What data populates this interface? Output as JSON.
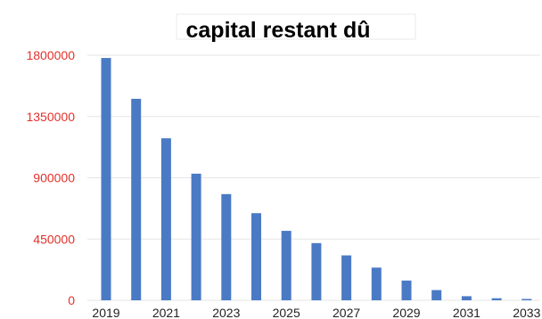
{
  "chart_data": {
    "type": "bar",
    "title": "capital restant dû",
    "xlabel": "",
    "ylabel": "",
    "categories": [
      "2019",
      "2020",
      "2021",
      "2022",
      "2023",
      "2024",
      "2025",
      "2026",
      "2027",
      "2028",
      "2029",
      "2030",
      "2031",
      "2032",
      "2033"
    ],
    "x_tick_labels": [
      "2019",
      "2021",
      "2023",
      "2025",
      "2027",
      "2029",
      "2031",
      "2033"
    ],
    "y_ticks": [
      0,
      450000,
      900000,
      1350000,
      1800000
    ],
    "y_tick_labels": [
      "0",
      "450000",
      "900000",
      "1350000",
      "1800000"
    ],
    "ylim": [
      0,
      1800000
    ],
    "grid": true,
    "legend": "none",
    "series": [
      {
        "values": [
          1780000,
          1480000,
          1190000,
          930000,
          780000,
          640000,
          510000,
          420000,
          330000,
          240000,
          145000,
          75000,
          30000,
          15000,
          8000
        ]
      }
    ],
    "colors": {
      "bar": "#4a7ac4",
      "y_tick_text": "#e2312b",
      "x_tick_text": "#222222",
      "grid": "#e6e6e6"
    }
  }
}
